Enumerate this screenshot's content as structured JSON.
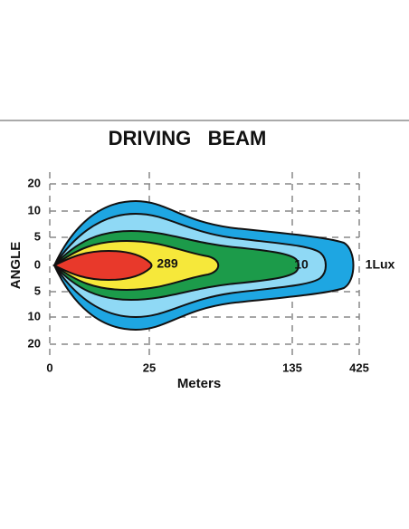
{
  "title": "DRIVING   BEAM",
  "y_axis": {
    "label": "ANGLE",
    "ticks": [
      "20",
      "10",
      "5",
      "0",
      "5",
      "10",
      "20"
    ]
  },
  "x_axis": {
    "label": "Meters",
    "ticks": [
      "0",
      "25",
      "135",
      "425"
    ]
  },
  "contour_labels": [
    "289",
    "10",
    "1Lux"
  ]
}
